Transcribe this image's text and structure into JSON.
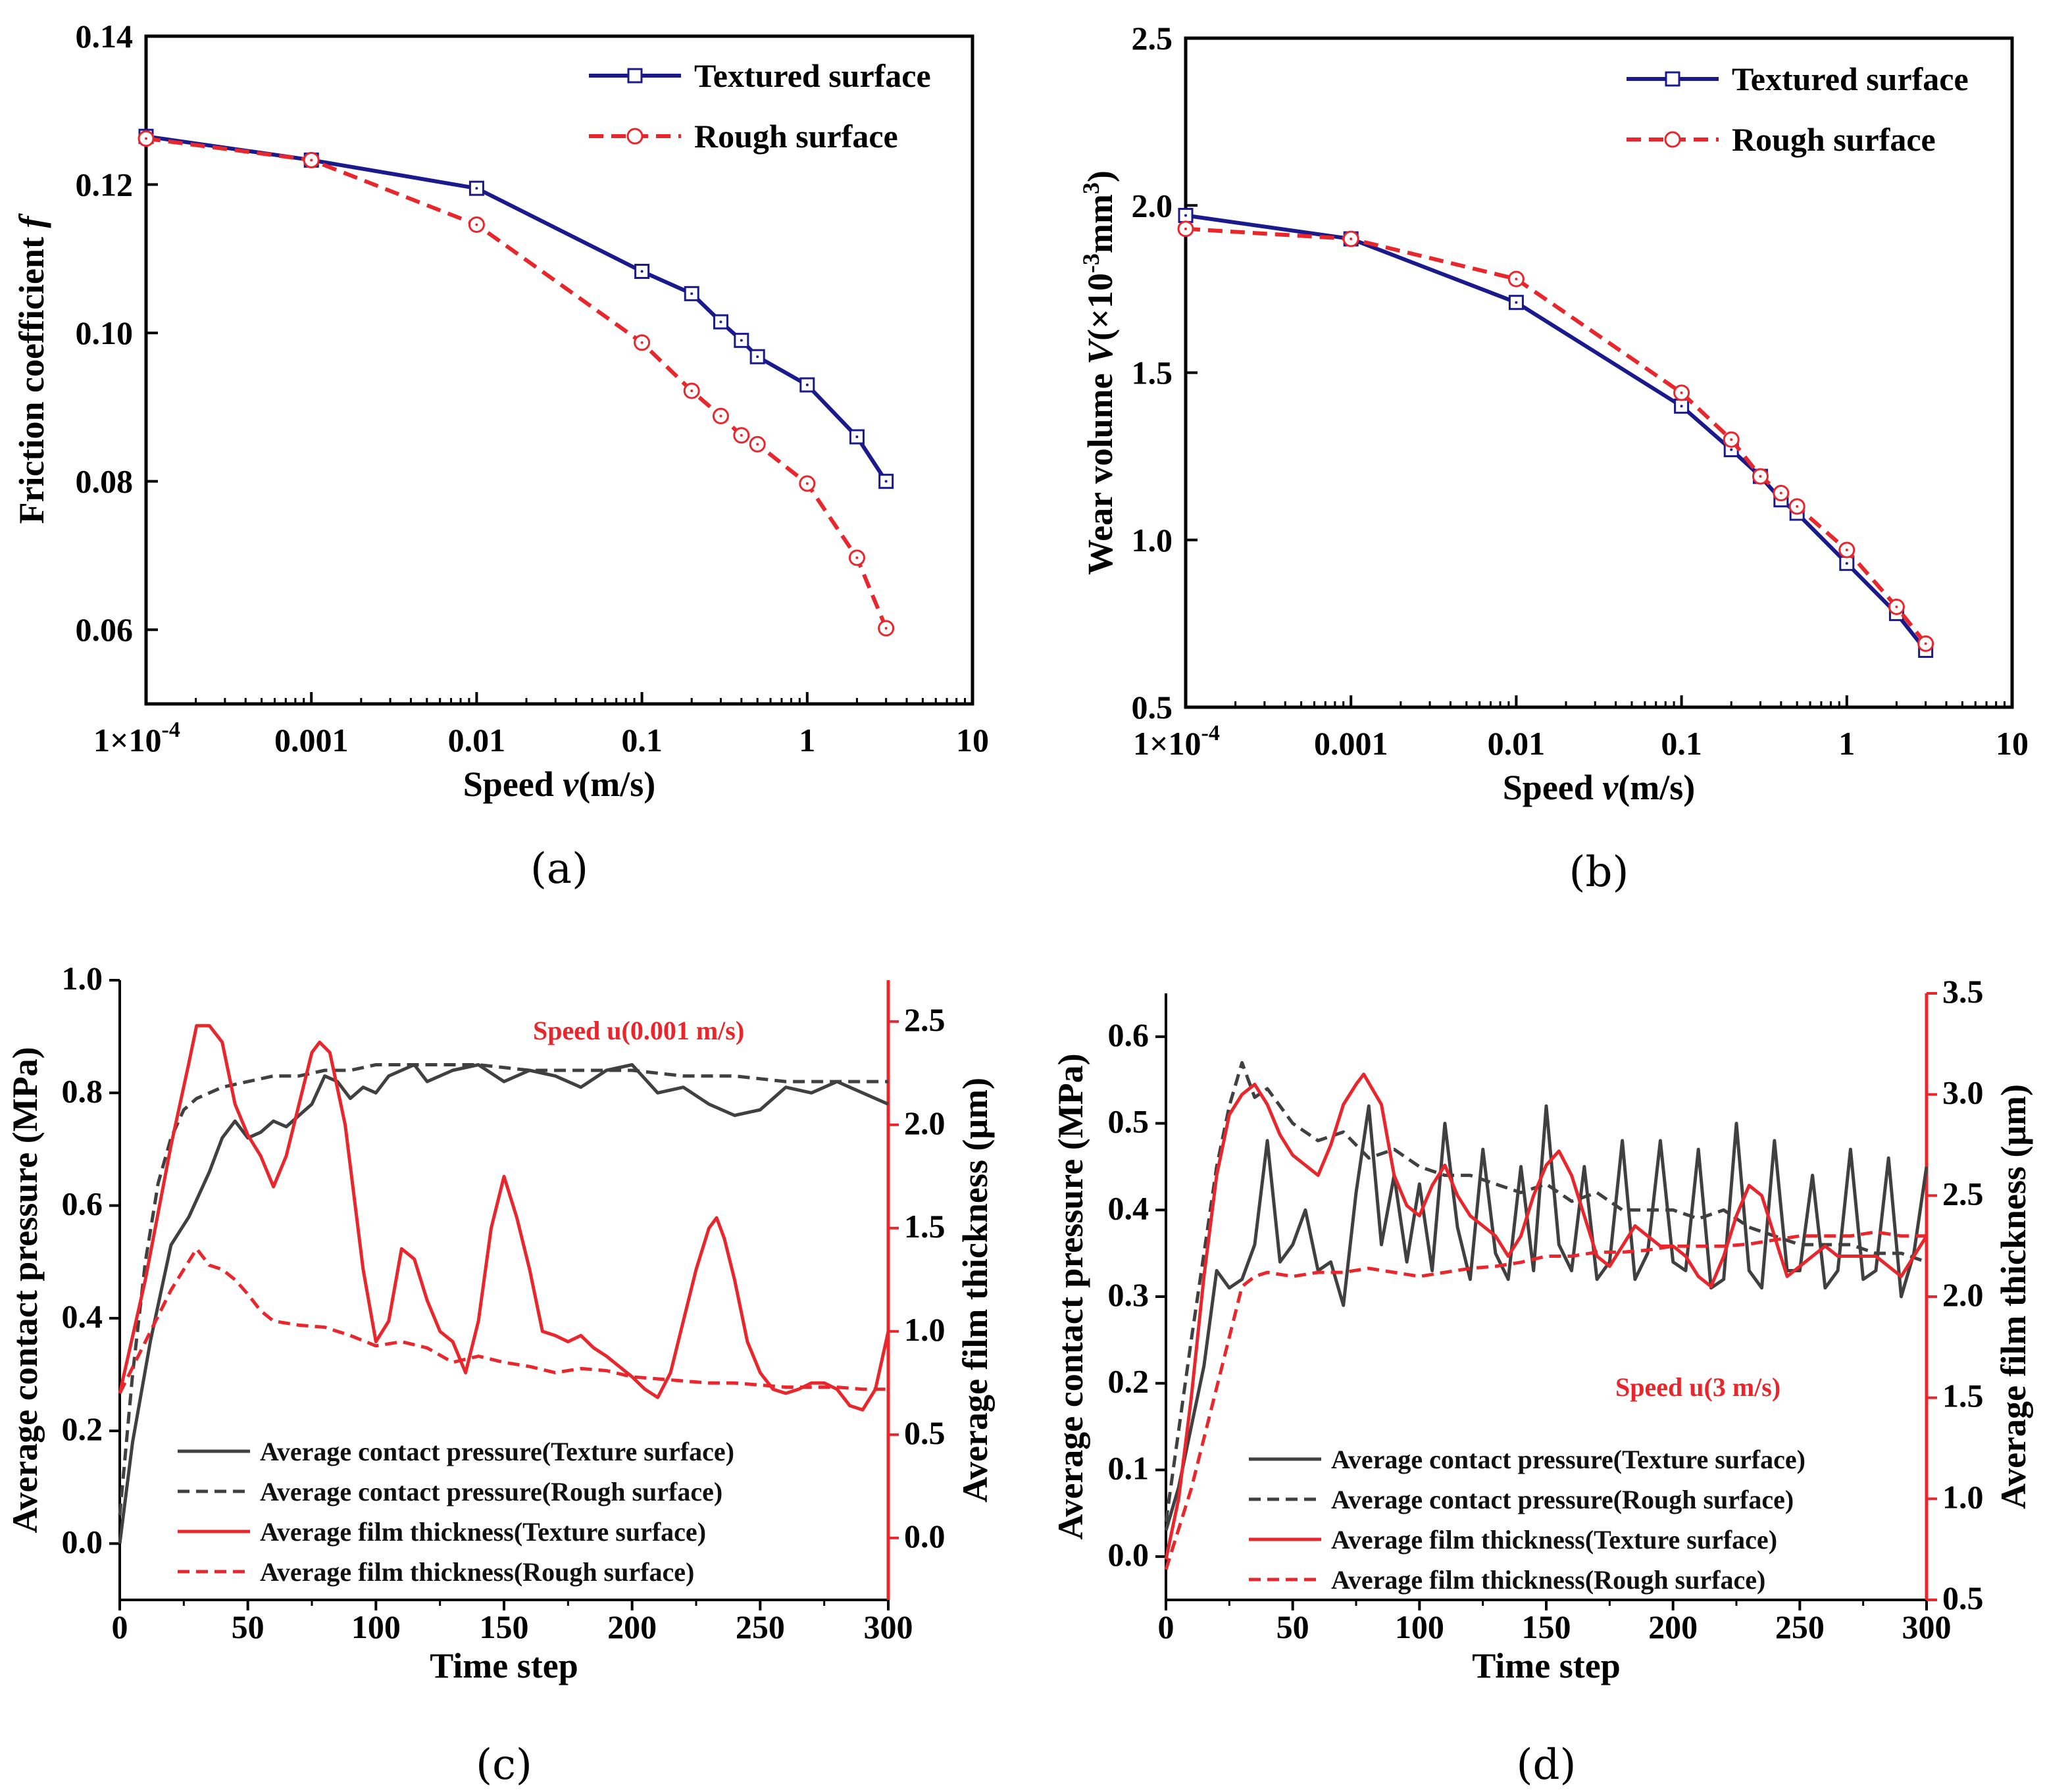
{
  "chart_data": [
    {
      "type": "line",
      "panel_label": "(a)",
      "xlabel": "Speed v(m/s)",
      "ylabel": "Friction coefficient f",
      "xscale": "log",
      "xlim": [
        0.0001,
        10
      ],
      "ylim": [
        0.05,
        0.14
      ],
      "xticks": [
        "1×10-4",
        "0.001",
        "0.01",
        "0.1",
        "1",
        "10"
      ],
      "yticks": [
        "0.06",
        "0.08",
        "0.10",
        "0.12",
        "0.14"
      ],
      "legend_position": "top-right",
      "series": [
        {
          "name": "Textured surface",
          "color": "#1a1a8c",
          "style": "solid",
          "marker": "square",
          "x": [
            0.0001,
            0.001,
            0.01,
            0.1,
            0.2,
            0.3,
            0.4,
            0.5,
            1,
            2,
            3
          ],
          "y": [
            0.1265,
            0.1233,
            0.1195,
            0.1083,
            0.1053,
            0.1015,
            0.099,
            0.0968,
            0.093,
            0.086,
            0.08
          ]
        },
        {
          "name": "Rough surface",
          "color": "#e8262b",
          "style": "dashed",
          "marker": "circle",
          "x": [
            0.0001,
            0.001,
            0.01,
            0.1,
            0.2,
            0.3,
            0.4,
            0.5,
            1,
            2,
            3
          ],
          "y": [
            0.1262,
            0.1233,
            0.1146,
            0.0987,
            0.0922,
            0.0888,
            0.0862,
            0.085,
            0.0797,
            0.0697,
            0.0602
          ]
        }
      ]
    },
    {
      "type": "line",
      "panel_label": "(b)",
      "xlabel": "Speed v(m/s)",
      "ylabel": "Wear volume V(×10-3mm3)",
      "xscale": "log",
      "xlim": [
        0.0001,
        10
      ],
      "ylim": [
        0.5,
        2.5
      ],
      "xticks": [
        "1×10-4",
        "0.001",
        "0.01",
        "0.1",
        "1",
        "10"
      ],
      "yticks": [
        "0.5",
        "1.0",
        "1.5",
        "2.0",
        "2.5"
      ],
      "legend_position": "top-right",
      "series": [
        {
          "name": "Textured surface",
          "color": "#1a1a8c",
          "style": "solid",
          "marker": "square",
          "x": [
            0.0001,
            0.001,
            0.01,
            0.1,
            0.2,
            0.3,
            0.4,
            0.5,
            1,
            2,
            3
          ],
          "y": [
            1.97,
            1.9,
            1.71,
            1.4,
            1.27,
            1.19,
            1.12,
            1.08,
            0.93,
            0.78,
            0.67
          ]
        },
        {
          "name": "Rough surface",
          "color": "#e8262b",
          "style": "dashed",
          "marker": "circle",
          "x": [
            0.0001,
            0.001,
            0.01,
            0.1,
            0.2,
            0.3,
            0.4,
            0.5,
            1,
            2,
            3
          ],
          "y": [
            1.93,
            1.9,
            1.78,
            1.44,
            1.3,
            1.19,
            1.14,
            1.1,
            0.97,
            0.8,
            0.69
          ]
        }
      ]
    },
    {
      "type": "line",
      "panel_label": "(c)",
      "annotation": "Speed u(0.001 m/s)",
      "xlabel": "Time step",
      "ylabel": "Average contact pressure (MPa)",
      "ylabel_right": "Average film thickness (μm)",
      "xlim": [
        0,
        300
      ],
      "ylim": [
        -0.1,
        1.0
      ],
      "ylim_right": [
        -0.3,
        2.7
      ],
      "xticks": [
        "0",
        "50",
        "100",
        "150",
        "200",
        "250",
        "300"
      ],
      "yticks": [
        "0.0",
        "0.2",
        "0.4",
        "0.6",
        "0.8",
        "1.0"
      ],
      "yticks_right": [
        "0.0",
        "0.5",
        "1.0",
        "1.5",
        "2.0",
        "2.5"
      ],
      "legend_position": "bottom-center",
      "series": [
        {
          "name": "Average contact pressure(Texture surface)",
          "axis": "left",
          "color": "#404040",
          "style": "solid",
          "x": [
            0,
            5,
            12,
            20,
            27,
            35,
            40,
            45,
            50,
            55,
            60,
            65,
            70,
            75,
            80,
            85,
            90,
            95,
            100,
            105,
            110,
            115,
            120,
            130,
            140,
            150,
            160,
            170,
            180,
            190,
            200,
            210,
            220,
            230,
            240,
            250,
            260,
            270,
            280,
            290,
            300
          ],
          "y": [
            0.0,
            0.18,
            0.36,
            0.53,
            0.58,
            0.66,
            0.72,
            0.75,
            0.72,
            0.73,
            0.75,
            0.74,
            0.76,
            0.78,
            0.83,
            0.82,
            0.79,
            0.81,
            0.8,
            0.83,
            0.84,
            0.85,
            0.82,
            0.84,
            0.85,
            0.82,
            0.84,
            0.83,
            0.81,
            0.84,
            0.85,
            0.8,
            0.81,
            0.78,
            0.76,
            0.77,
            0.81,
            0.8,
            0.82,
            0.8,
            0.78
          ]
        },
        {
          "name": "Average contact pressure(Rough surface)",
          "axis": "left",
          "color": "#404040",
          "style": "dashed",
          "x": [
            0,
            5,
            10,
            15,
            20,
            25,
            30,
            35,
            40,
            50,
            60,
            70,
            80,
            90,
            100,
            120,
            140,
            160,
            180,
            200,
            220,
            240,
            260,
            280,
            300
          ],
          "y": [
            0.05,
            0.3,
            0.5,
            0.64,
            0.72,
            0.77,
            0.79,
            0.8,
            0.81,
            0.82,
            0.83,
            0.83,
            0.84,
            0.84,
            0.85,
            0.85,
            0.85,
            0.84,
            0.84,
            0.84,
            0.83,
            0.83,
            0.82,
            0.82,
            0.82
          ]
        },
        {
          "name": "Average film thickness(Texture surface)",
          "axis": "right",
          "color": "#e8262b",
          "style": "solid",
          "x": [
            0,
            10,
            20,
            27,
            30,
            35,
            40,
            45,
            50,
            55,
            60,
            65,
            70,
            75,
            78,
            82,
            88,
            95,
            100,
            105,
            110,
            115,
            120,
            125,
            130,
            135,
            140,
            145,
            150,
            155,
            160,
            165,
            170,
            175,
            180,
            185,
            190,
            200,
            205,
            210,
            215,
            220,
            225,
            230,
            233,
            236,
            240,
            245,
            250,
            255,
            260,
            265,
            270,
            275,
            280,
            285,
            290,
            295,
            300
          ],
          "y": [
            0.7,
            1.25,
            1.9,
            2.3,
            2.48,
            2.48,
            2.4,
            2.1,
            1.95,
            1.85,
            1.7,
            1.85,
            2.1,
            2.35,
            2.4,
            2.35,
            2.0,
            1.3,
            0.95,
            1.05,
            1.4,
            1.35,
            1.15,
            1.0,
            0.95,
            0.8,
            1.05,
            1.5,
            1.75,
            1.55,
            1.3,
            1.0,
            0.98,
            0.95,
            0.98,
            0.92,
            0.88,
            0.78,
            0.72,
            0.68,
            0.8,
            1.05,
            1.3,
            1.5,
            1.55,
            1.45,
            1.25,
            0.95,
            0.8,
            0.72,
            0.7,
            0.72,
            0.75,
            0.75,
            0.72,
            0.64,
            0.62,
            0.72,
            1.0
          ]
        },
        {
          "name": "Average film thickness(Rough surface)",
          "axis": "right",
          "color": "#e8262b",
          "style": "dashed",
          "x": [
            0,
            10,
            20,
            30,
            35,
            40,
            45,
            50,
            55,
            60,
            70,
            80,
            90,
            100,
            110,
            120,
            130,
            140,
            150,
            160,
            170,
            180,
            190,
            200,
            210,
            220,
            230,
            240,
            250,
            260,
            270,
            280,
            290,
            300
          ],
          "y": [
            0.7,
            0.95,
            1.2,
            1.4,
            1.32,
            1.3,
            1.25,
            1.18,
            1.1,
            1.05,
            1.03,
            1.02,
            0.98,
            0.93,
            0.95,
            0.92,
            0.85,
            0.88,
            0.85,
            0.83,
            0.8,
            0.82,
            0.81,
            0.78,
            0.77,
            0.76,
            0.75,
            0.75,
            0.74,
            0.73,
            0.73,
            0.73,
            0.72,
            0.72
          ]
        }
      ]
    },
    {
      "type": "line",
      "panel_label": "(d)",
      "annotation": "Speed u(3 m/s)",
      "xlabel": "Time step",
      "ylabel": "Average contact pressure (MPa)",
      "ylabel_right": "Average film thickness (μm)",
      "xlim": [
        0,
        300
      ],
      "ylim": [
        -0.05,
        0.65
      ],
      "ylim_right": [
        0.5,
        3.5
      ],
      "xticks": [
        "0",
        "50",
        "100",
        "150",
        "200",
        "250",
        "300"
      ],
      "yticks": [
        "0.0",
        "0.1",
        "0.2",
        "0.3",
        "0.4",
        "0.5",
        "0.6"
      ],
      "yticks_right": [
        "0.5",
        "1.0",
        "1.5",
        "2.0",
        "2.5",
        "3.0",
        "3.5"
      ],
      "legend_position": "bottom-right",
      "series": [
        {
          "name": "Average contact pressure(Texture surface)",
          "axis": "left",
          "color": "#404040",
          "style": "solid",
          "x": [
            0,
            5,
            10,
            15,
            20,
            25,
            30,
            35,
            40,
            45,
            50,
            55,
            60,
            65,
            70,
            75,
            80,
            85,
            90,
            95,
            100,
            105,
            110,
            115,
            120,
            125,
            130,
            135,
            140,
            145,
            150,
            155,
            160,
            165,
            170,
            175,
            180,
            185,
            190,
            195,
            200,
            205,
            210,
            215,
            220,
            225,
            230,
            235,
            240,
            245,
            250,
            255,
            260,
            265,
            270,
            275,
            280,
            285,
            290,
            295,
            300
          ],
          "y": [
            0.03,
            0.08,
            0.15,
            0.22,
            0.33,
            0.31,
            0.32,
            0.36,
            0.48,
            0.34,
            0.36,
            0.4,
            0.33,
            0.34,
            0.29,
            0.42,
            0.52,
            0.36,
            0.44,
            0.34,
            0.43,
            0.33,
            0.5,
            0.38,
            0.32,
            0.47,
            0.35,
            0.32,
            0.45,
            0.33,
            0.52,
            0.36,
            0.33,
            0.45,
            0.32,
            0.34,
            0.48,
            0.32,
            0.35,
            0.48,
            0.34,
            0.33,
            0.47,
            0.31,
            0.32,
            0.5,
            0.33,
            0.31,
            0.48,
            0.33,
            0.33,
            0.44,
            0.31,
            0.33,
            0.47,
            0.32,
            0.33,
            0.46,
            0.3,
            0.35,
            0.45
          ]
        },
        {
          "name": "Average contact pressure(Rough surface)",
          "axis": "left",
          "color": "#404040",
          "style": "dashed",
          "x": [
            0,
            10,
            20,
            25,
            30,
            35,
            40,
            50,
            60,
            70,
            80,
            90,
            100,
            110,
            120,
            130,
            140,
            150,
            160,
            170,
            180,
            190,
            200,
            210,
            220,
            230,
            240,
            250,
            260,
            270,
            280,
            290,
            300
          ],
          "y": [
            0.04,
            0.25,
            0.45,
            0.52,
            0.57,
            0.53,
            0.54,
            0.5,
            0.48,
            0.49,
            0.46,
            0.47,
            0.45,
            0.44,
            0.44,
            0.43,
            0.42,
            0.43,
            0.41,
            0.42,
            0.4,
            0.4,
            0.4,
            0.39,
            0.4,
            0.38,
            0.37,
            0.36,
            0.36,
            0.36,
            0.35,
            0.35,
            0.34
          ]
        },
        {
          "name": "Average film thickness(Texture surface)",
          "axis": "right",
          "color": "#e8262b",
          "style": "solid",
          "x": [
            0,
            5,
            10,
            15,
            20,
            25,
            30,
            35,
            40,
            45,
            50,
            55,
            60,
            65,
            70,
            75,
            78,
            85,
            90,
            95,
            100,
            105,
            110,
            115,
            120,
            125,
            130,
            135,
            140,
            145,
            150,
            155,
            160,
            165,
            170,
            175,
            180,
            185,
            190,
            195,
            200,
            205,
            210,
            215,
            220,
            225,
            230,
            235,
            240,
            245,
            250,
            255,
            260,
            265,
            270,
            275,
            280,
            285,
            290,
            295,
            300
          ],
          "y": [
            0.7,
            1.0,
            1.5,
            2.1,
            2.6,
            2.9,
            3.0,
            3.05,
            2.95,
            2.8,
            2.7,
            2.65,
            2.6,
            2.75,
            2.95,
            3.05,
            3.1,
            2.95,
            2.6,
            2.45,
            2.4,
            2.55,
            2.65,
            2.5,
            2.4,
            2.35,
            2.3,
            2.2,
            2.3,
            2.5,
            2.65,
            2.72,
            2.6,
            2.4,
            2.2,
            2.15,
            2.25,
            2.35,
            2.3,
            2.25,
            2.25,
            2.2,
            2.1,
            2.05,
            2.2,
            2.4,
            2.55,
            2.5,
            2.3,
            2.1,
            2.15,
            2.2,
            2.25,
            2.2,
            2.2,
            2.2,
            2.2,
            2.15,
            2.1,
            2.2,
            2.3
          ]
        },
        {
          "name": "Average film thickness(Rough surface)",
          "axis": "right",
          "color": "#e8262b",
          "style": "dashed",
          "x": [
            0,
            10,
            20,
            30,
            35,
            40,
            50,
            60,
            70,
            80,
            90,
            100,
            110,
            120,
            130,
            140,
            150,
            160,
            170,
            180,
            190,
            200,
            210,
            220,
            230,
            240,
            250,
            260,
            270,
            280,
            290,
            300
          ],
          "y": [
            0.65,
            1.05,
            1.55,
            2.05,
            2.1,
            2.12,
            2.1,
            2.12,
            2.12,
            2.14,
            2.12,
            2.1,
            2.12,
            2.14,
            2.15,
            2.17,
            2.2,
            2.2,
            2.22,
            2.22,
            2.23,
            2.25,
            2.25,
            2.25,
            2.26,
            2.28,
            2.3,
            2.3,
            2.3,
            2.32,
            2.3,
            2.3
          ]
        }
      ]
    }
  ]
}
